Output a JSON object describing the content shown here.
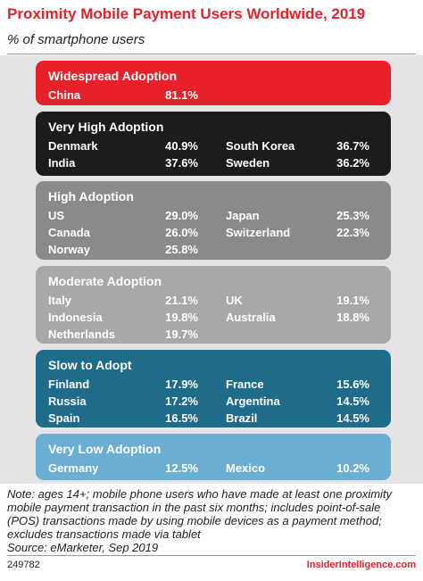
{
  "header": {
    "title": "Proximity Mobile Payment Users Worldwide, 2019",
    "subtitle": "% of smartphone users"
  },
  "groups": [
    {
      "title": "Widespread Adoption",
      "color": "#e8202a",
      "rows": [
        [
          {
            "name": "China",
            "value": "81.1%"
          }
        ]
      ]
    },
    {
      "title": "Very High Adoption",
      "color": "#1c1c1c",
      "rows": [
        [
          {
            "name": "Denmark",
            "value": "40.9%"
          },
          {
            "name": "South Korea",
            "value": "36.7%"
          }
        ],
        [
          {
            "name": "India",
            "value": "37.6%"
          },
          {
            "name": "Sweden",
            "value": "36.2%"
          }
        ]
      ]
    },
    {
      "title": "High Adoption",
      "color": "#8a8a8a",
      "rows": [
        [
          {
            "name": "US",
            "value": "29.0%"
          },
          {
            "name": "Japan",
            "value": "25.3%"
          }
        ],
        [
          {
            "name": "Canada",
            "value": "26.0%"
          },
          {
            "name": "Switzerland",
            "value": "22.3%"
          }
        ],
        [
          {
            "name": "Norway",
            "value": "25.8%"
          }
        ]
      ]
    },
    {
      "title": "Moderate Adoption",
      "color": "#a8a8a8",
      "rows": [
        [
          {
            "name": "Italy",
            "value": "21.1%"
          },
          {
            "name": "UK",
            "value": "19.1%"
          }
        ],
        [
          {
            "name": "Indonesia",
            "value": "19.8%"
          },
          {
            "name": "Australia",
            "value": "18.8%"
          }
        ],
        [
          {
            "name": "Netherlands",
            "value": "19.7%"
          }
        ]
      ]
    },
    {
      "title": "Slow to Adopt",
      "color": "#1f6b8a",
      "rows": [
        [
          {
            "name": "Finland",
            "value": "17.9%"
          },
          {
            "name": "France",
            "value": "15.6%"
          }
        ],
        [
          {
            "name": "Russia",
            "value": "17.2%"
          },
          {
            "name": "Argentina",
            "value": "14.5%"
          }
        ],
        [
          {
            "name": "Spain",
            "value": "16.5%"
          },
          {
            "name": "Brazil",
            "value": "14.5%"
          }
        ]
      ]
    },
    {
      "title": "Very Low Adoption",
      "color": "#6aaed3",
      "rows": [
        [
          {
            "name": "Germany",
            "value": "12.5%"
          },
          {
            "name": "Mexico",
            "value": "10.2%"
          }
        ]
      ]
    }
  ],
  "note": {
    "lines": [
      "Note: ages 14+; mobile phone users who have made at least one proximity",
      "mobile payment transaction in the past six months; includes point-of-sale",
      "(POS) transactions made by using mobile devices as a payment method;",
      "excludes transactions made via tablet"
    ],
    "source": "Source: eMarketer, Sep 2019"
  },
  "footer": {
    "code": "249782",
    "brand": "InsiderIntelligence.com"
  }
}
